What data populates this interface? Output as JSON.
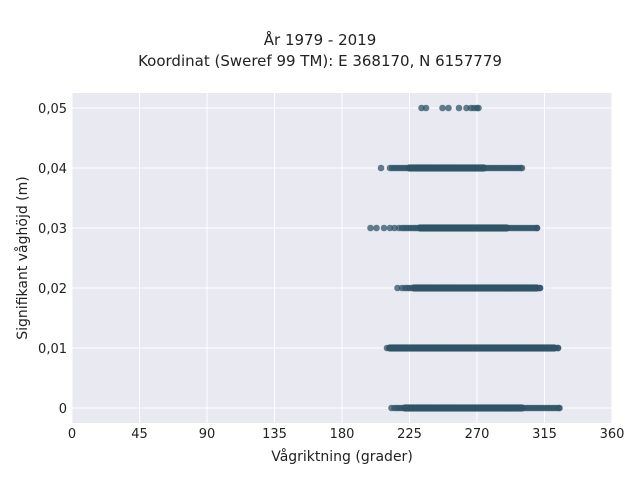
{
  "chart_data": {
    "type": "scatter",
    "title": "År 1979 - 2019",
    "subtitle": "Koordinat (Sweref 99 TM): E 368170, N 6157779",
    "xlabel": "Vågriktning (grader)",
    "ylabel": "Signifikant våghöjd (m)",
    "xlim": [
      0,
      360
    ],
    "ylim": [
      -0.0025,
      0.0525
    ],
    "xticks": [
      0,
      45,
      90,
      135,
      180,
      225,
      270,
      315,
      360
    ],
    "xtick_labels": [
      "0",
      "45",
      "90",
      "135",
      "180",
      "225",
      "270",
      "315",
      "360"
    ],
    "yticks": [
      0,
      0.01,
      0.02,
      0.03,
      0.04,
      0.05
    ],
    "ytick_labels": [
      "0",
      "0,01",
      "0,02",
      "0,03",
      "0,04",
      "0,05"
    ],
    "grid": true,
    "point_color": "#2f5468",
    "background": "#e9e9f1",
    "series": [
      {
        "y": 0.05,
        "points": [
          233,
          236,
          247,
          251,
          258,
          263,
          266,
          268,
          270,
          271
        ]
      },
      {
        "y": 0.04,
        "points": [
          206
        ],
        "band": [
          212,
          300
        ],
        "dense_core": [
          225,
          275
        ]
      },
      {
        "y": 0.03,
        "points": [
          199,
          203,
          208,
          212,
          215,
          218
        ],
        "band": [
          220,
          310
        ],
        "dense_core": [
          232,
          290
        ]
      },
      {
        "y": 0.02,
        "points": [
          217,
          220
        ],
        "band": [
          222,
          312
        ],
        "dense_core": [
          228,
          310
        ]
      },
      {
        "y": 0.01,
        "points": [],
        "band": [
          210,
          324
        ],
        "dense_core": [
          212,
          322
        ]
      },
      {
        "y": 0,
        "points": [
          213
        ],
        "band": [
          215,
          325
        ],
        "dense_core": [
          222,
          300
        ]
      }
    ]
  }
}
